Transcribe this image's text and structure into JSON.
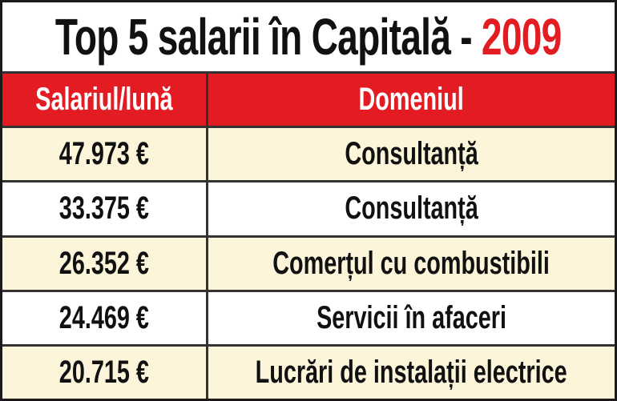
{
  "title": {
    "text": "Top 5 salarii în Capitală -",
    "year": "2009"
  },
  "table": {
    "header": [
      "Salariul/lună",
      "Domeniul"
    ],
    "rows": [
      [
        "47.973 €",
        "Consultanță"
      ],
      [
        "33.375 €",
        "Consultanță"
      ],
      [
        "26.352 €",
        "Comerțul cu combustibili"
      ],
      [
        "24.469 €",
        "Servicii în afaceri"
      ],
      [
        "20.715 €",
        "Lucrări de instalații electrice"
      ]
    ]
  }
}
